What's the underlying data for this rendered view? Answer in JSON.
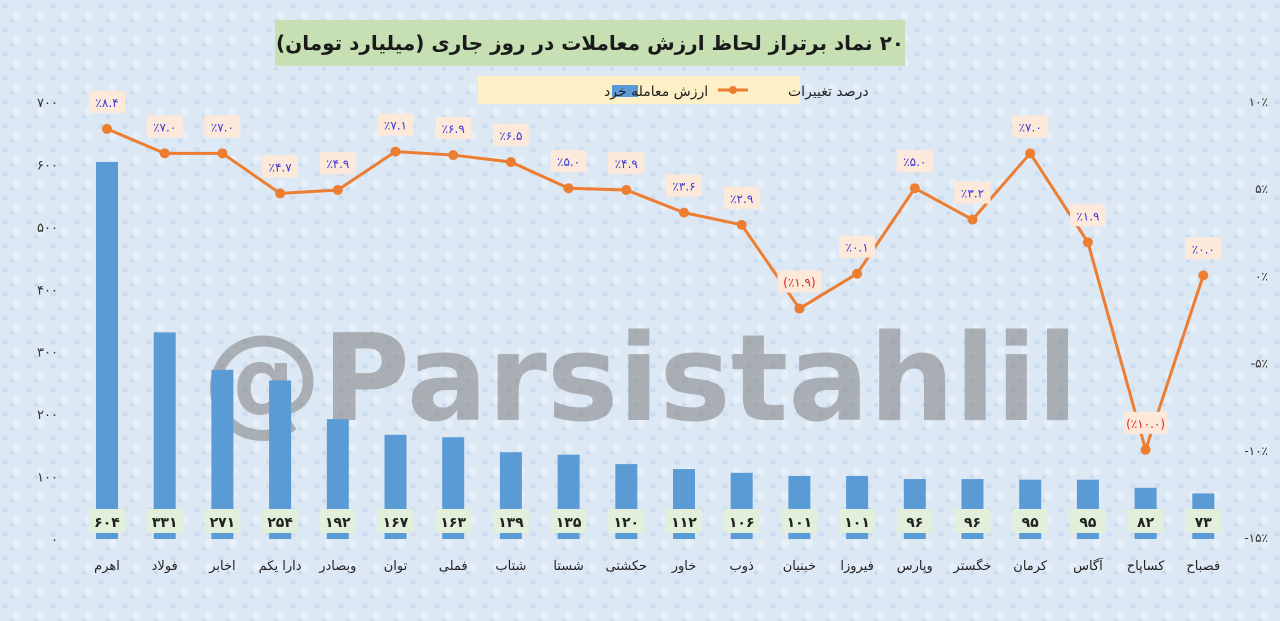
{
  "chart_data": {
    "type": "bar+line",
    "title": "۲۰ نماد برتراز لحاظ ارزش معاملات در روز جاری (میلیارد تومان)",
    "watermark": "@Parsistahlil",
    "categories": [
      "اهرم",
      "فولاد",
      "اخابر",
      "دارا یکم",
      "وبصادر",
      "توان",
      "فملی",
      "شتاب",
      "شستا",
      "حکشتی",
      "خاور",
      "ذوب",
      "خبنیان",
      "فیروزا",
      "وپارس",
      "خگستر",
      "کرمان",
      "آگاس",
      "کساپاح",
      "فصباح"
    ],
    "series": [
      {
        "name": "ارزش معامله خرد",
        "type": "bar",
        "axis": "left",
        "color": "#5b9bd5",
        "values": [
          604,
          331,
          271,
          254,
          192,
          167,
          163,
          139,
          135,
          120,
          112,
          106,
          101,
          101,
          96,
          96,
          95,
          95,
          82,
          73
        ],
        "labels": [
          "۶۰۴",
          "۳۳۱",
          "۲۷۱",
          "۲۵۴",
          "۱۹۲",
          "۱۶۷",
          "۱۶۳",
          "۱۳۹",
          "۱۳۵",
          "۱۲۰",
          "۱۱۲",
          "۱۰۶",
          "۱۰۱",
          "۱۰۱",
          "۹۶",
          "۹۶",
          "۹۵",
          "۹۵",
          "۸۲",
          "۷۳"
        ]
      },
      {
        "name": "درصد تغییرات",
        "type": "line",
        "axis": "right",
        "color": "#ed7d31",
        "values": [
          8.4,
          7.0,
          7.0,
          4.7,
          4.9,
          7.1,
          6.9,
          6.5,
          5.0,
          4.9,
          3.6,
          2.9,
          -1.9,
          0.1,
          5.0,
          3.2,
          7.0,
          1.9,
          -10.0,
          0.0
        ],
        "labels": [
          "٪۸.۴",
          "٪۷.۰",
          "٪۷.۰",
          "٪۴.۷",
          "٪۴.۹",
          "٪۷.۱",
          "٪۶.۹",
          "٪۶.۵",
          "٪۵.۰",
          "٪۴.۹",
          "٪۳.۶",
          "٪۲.۹",
          "(٪۱.۹)",
          "٪۰.۱",
          "٪۵.۰",
          "٪۳.۲",
          "٪۷.۰",
          "٪۱.۹",
          "(٪۱۰.۰)",
          "٪۰.۰"
        ]
      }
    ],
    "y_left": {
      "min": 0,
      "max": 700,
      "ticks": [
        0,
        100,
        200,
        300,
        400,
        500,
        600,
        700
      ],
      "tick_labels": [
        "۰",
        "۱۰۰",
        "۲۰۰",
        "۳۰۰",
        "۴۰۰",
        "۵۰۰",
        "۶۰۰",
        "۷۰۰"
      ]
    },
    "y_right": {
      "min": -15,
      "max": 10,
      "ticks": [
        10,
        5,
        0,
        -5,
        -10,
        -15
      ],
      "tick_labels": [
        "۱۰٪",
        "۵٪",
        "۰٪",
        "-۵٪",
        "-۱۰٪",
        "-۱۵٪"
      ]
    },
    "legend": {
      "placement": "top-center",
      "entries": [
        "درصد تغییرات",
        "ارزش معامله خرد"
      ]
    },
    "grid": false,
    "colors": {
      "title_bg": "#c6e0b4",
      "legend_bg": "#fdf0c7",
      "pct_label_bg": "#fde9d9",
      "pct_positive_text": "#3b3bd6",
      "pct_negative_text": "#d62828",
      "bar_label_bg": "#e2efda"
    }
  }
}
